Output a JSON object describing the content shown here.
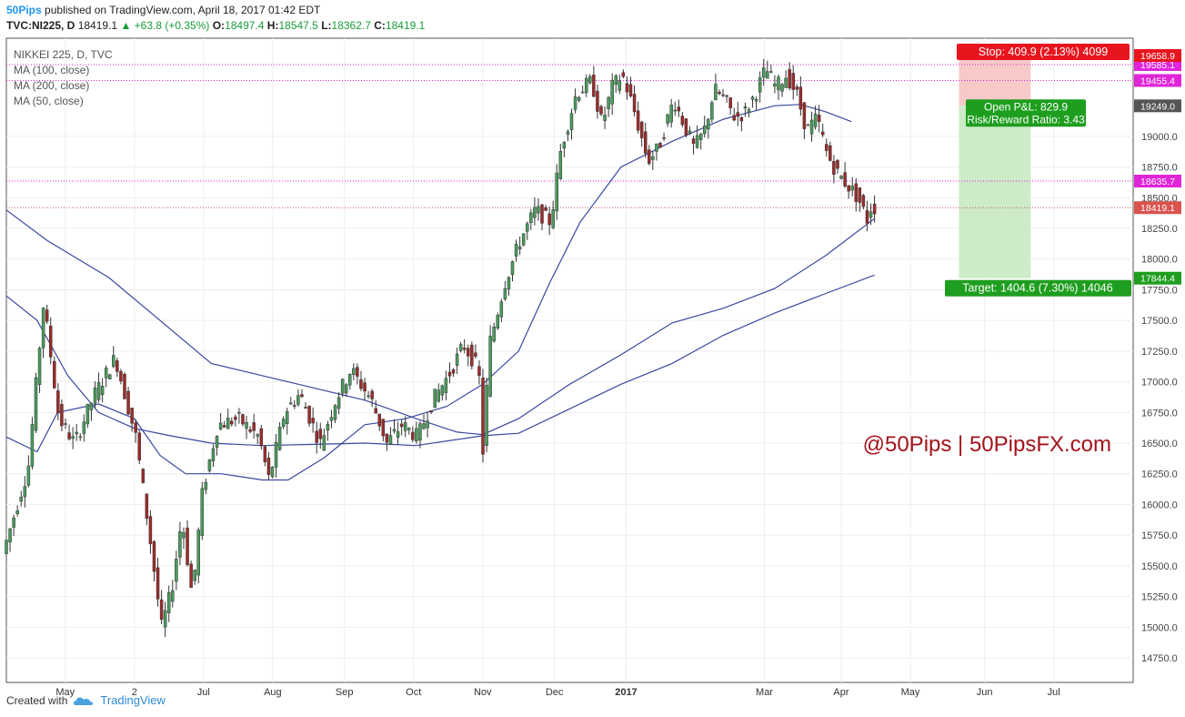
{
  "header": {
    "brand": "50Pips",
    "published": "published on TradingView.com, April 18, 2017 01:42 EDT",
    "symbol": "TVC:NI225, D",
    "last": "18419.1",
    "change": "▲ +63.8 (+0.35%)",
    "o_label": "O:",
    "o_value": "18497.4",
    "h_label": "H:",
    "h_value": "18547.5",
    "l_label": "L:",
    "l_value": "18362.7",
    "c_label": "C:",
    "c_value": "18419.1"
  },
  "legend": [
    "NIKKEI 225, D, TVC",
    "MA (100, close)",
    "MA (200, close)",
    "MA (50, close)"
  ],
  "watermark": "@50Pips | 50PipsFX.com",
  "footer": {
    "created_with": "Created with",
    "tradingview": "TradingView"
  },
  "colors": {
    "up": "#4a9b5c",
    "down": "#9c2b2b",
    "ma": "#3a48a0",
    "hline": "#c4189e",
    "grid": "#eeeeee"
  },
  "chart_data": {
    "type": "candlestick",
    "ylim": [
      14550,
      19800
    ],
    "y_ticks": [
      14750,
      15000,
      15250,
      15500,
      15750,
      16000,
      16250,
      16500,
      16750,
      17000,
      17250,
      17500,
      17750,
      18000,
      18250,
      18500,
      18750,
      19000
    ],
    "x_ticks": [
      {
        "label": "May",
        "t": 0.115
      },
      {
        "label": "2",
        "t": 0.25
      },
      {
        "label": "Jul",
        "t": 0.385
      },
      {
        "label": "Aug",
        "t": 0.52
      },
      {
        "label": "Sep",
        "t": 0.66
      },
      {
        "label": "Oct",
        "t": 0.795
      },
      {
        "label": "Nov",
        "t": 0.93
      },
      {
        "label": "Dec",
        "t": 1.07
      },
      {
        "label": "2017",
        "t": 1.21
      },
      {
        "label": "Mar",
        "t": 1.48
      },
      {
        "label": "Apr",
        "t": 1.63
      },
      {
        "label": "May",
        "t": 1.765
      },
      {
        "label": "Jun",
        "t": 1.91
      },
      {
        "label": "Jul",
        "t": 2.045
      }
    ],
    "price_lines": [
      {
        "value": 19585.1,
        "label": "19585.1",
        "color": "#e024d8"
      },
      {
        "value": 19455.4,
        "label": "19455.4",
        "color": "#e024d8"
      },
      {
        "value": 18635.7,
        "label": "18635.7",
        "color": "#e024d8"
      },
      {
        "value": 18419.1,
        "label": "18419.1",
        "color": "#d9534f"
      }
    ],
    "axis_badges": [
      {
        "value": 19658.9,
        "label": "19658.9",
        "color": "#e8141e"
      },
      {
        "value": 19249.0,
        "label": "19249.0",
        "color": "#555555"
      },
      {
        "value": 17844.4,
        "label": "17844.4",
        "color": "#1e9e1e"
      }
    ],
    "position": {
      "t_start": 1.86,
      "t_end": 2.0,
      "entry": 19249.0,
      "stop": 19658.9,
      "target": 17844.4,
      "stop_label": "Stop: 409.9 (2.13%) 4099",
      "pl_label": "Open P&L: 829.9",
      "rr_label": "Risk/Reward Ratio: 3.43",
      "target_label": "Target: 1404.6 (7.30%) 14046"
    },
    "ma_series": [
      {
        "name": "MA (100, close)",
        "points": [
          [
            0,
            18400
          ],
          [
            0.08,
            18150
          ],
          [
            0.2,
            17850
          ],
          [
            0.3,
            17500
          ],
          [
            0.4,
            17150
          ],
          [
            0.5,
            17050
          ],
          [
            0.6,
            16950
          ],
          [
            0.7,
            16850
          ],
          [
            0.8,
            16700
          ],
          [
            0.88,
            16590
          ],
          [
            0.93,
            16570
          ],
          [
            1.0,
            16700
          ],
          [
            1.1,
            16980
          ],
          [
            1.2,
            17220
          ],
          [
            1.3,
            17480
          ],
          [
            1.4,
            17600
          ],
          [
            1.5,
            17760
          ],
          [
            1.6,
            18030
          ],
          [
            1.695,
            18330
          ]
        ]
      },
      {
        "name": "MA (200, close)",
        "points": [
          [
            0,
            17700
          ],
          [
            0.06,
            17500
          ],
          [
            0.12,
            17050
          ],
          [
            0.18,
            16750
          ],
          [
            0.25,
            16620
          ],
          [
            0.32,
            16560
          ],
          [
            0.4,
            16500
          ],
          [
            0.5,
            16480
          ],
          [
            0.6,
            16490
          ],
          [
            0.7,
            16500
          ],
          [
            0.8,
            16480
          ],
          [
            0.88,
            16530
          ],
          [
            0.93,
            16560
          ],
          [
            1.0,
            16580
          ],
          [
            1.1,
            16780
          ],
          [
            1.2,
            16980
          ],
          [
            1.3,
            17150
          ],
          [
            1.4,
            17380
          ],
          [
            1.5,
            17560
          ],
          [
            1.6,
            17720
          ],
          [
            1.695,
            17870
          ]
        ]
      },
      {
        "name": "MA (50, close)",
        "points": [
          [
            0,
            16550
          ],
          [
            0.06,
            16430
          ],
          [
            0.1,
            16750
          ],
          [
            0.18,
            16820
          ],
          [
            0.25,
            16700
          ],
          [
            0.3,
            16400
          ],
          [
            0.35,
            16250
          ],
          [
            0.42,
            16250
          ],
          [
            0.5,
            16200
          ],
          [
            0.55,
            16200
          ],
          [
            0.62,
            16380
          ],
          [
            0.7,
            16650
          ],
          [
            0.78,
            16700
          ],
          [
            0.86,
            16800
          ],
          [
            0.93,
            16980
          ],
          [
            1.0,
            17250
          ],
          [
            1.06,
            17800
          ],
          [
            1.12,
            18300
          ],
          [
            1.2,
            18750
          ],
          [
            1.3,
            18960
          ],
          [
            1.4,
            19140
          ],
          [
            1.5,
            19250
          ],
          [
            1.55,
            19260
          ],
          [
            1.6,
            19200
          ],
          [
            1.65,
            19120
          ]
        ]
      }
    ],
    "series": [
      {
        "name": "price",
        "points": [
          [
            0,
            15600
          ],
          [
            0.05,
            16300
          ],
          [
            0.08,
            17650
          ],
          [
            0.11,
            16700
          ],
          [
            0.14,
            16500
          ],
          [
            0.18,
            16900
          ],
          [
            0.22,
            17200
          ],
          [
            0.26,
            16550
          ],
          [
            0.29,
            15650
          ],
          [
            0.31,
            15000
          ],
          [
            0.33,
            15300
          ],
          [
            0.35,
            15900
          ],
          [
            0.37,
            15250
          ],
          [
            0.39,
            16100
          ],
          [
            0.42,
            16650
          ],
          [
            0.46,
            16700
          ],
          [
            0.5,
            16550
          ],
          [
            0.52,
            16200
          ],
          [
            0.55,
            16750
          ],
          [
            0.58,
            16900
          ],
          [
            0.62,
            16500
          ],
          [
            0.65,
            16850
          ],
          [
            0.68,
            17100
          ],
          [
            0.72,
            16850
          ],
          [
            0.75,
            16500
          ],
          [
            0.78,
            16650
          ],
          [
            0.81,
            16550
          ],
          [
            0.84,
            16850
          ],
          [
            0.87,
            17050
          ],
          [
            0.9,
            17300
          ],
          [
            0.93,
            17100
          ],
          [
            0.935,
            16250
          ],
          [
            0.95,
            17300
          ],
          [
            0.98,
            17800
          ],
          [
            1.01,
            18150
          ],
          [
            1.04,
            18400
          ],
          [
            1.07,
            18300
          ],
          [
            1.09,
            18900
          ],
          [
            1.12,
            19350
          ],
          [
            1.15,
            19450
          ],
          [
            1.17,
            19100
          ],
          [
            1.19,
            19400
          ],
          [
            1.21,
            19500
          ],
          [
            1.23,
            19250
          ],
          [
            1.26,
            18800
          ],
          [
            1.28,
            18900
          ],
          [
            1.31,
            19300
          ],
          [
            1.33,
            19100
          ],
          [
            1.35,
            18900
          ],
          [
            1.37,
            19050
          ],
          [
            1.39,
            19380
          ],
          [
            1.41,
            19300
          ],
          [
            1.43,
            19150
          ],
          [
            1.45,
            19200
          ],
          [
            1.47,
            19350
          ],
          [
            1.49,
            19550
          ],
          [
            1.51,
            19400
          ],
          [
            1.53,
            19500
          ],
          [
            1.55,
            19350
          ],
          [
            1.57,
            19050
          ],
          [
            1.59,
            19150
          ],
          [
            1.61,
            18850
          ],
          [
            1.63,
            18700
          ],
          [
            1.65,
            18600
          ],
          [
            1.67,
            18500
          ],
          [
            1.69,
            18300
          ],
          [
            1.695,
            18419.1
          ]
        ]
      }
    ]
  }
}
